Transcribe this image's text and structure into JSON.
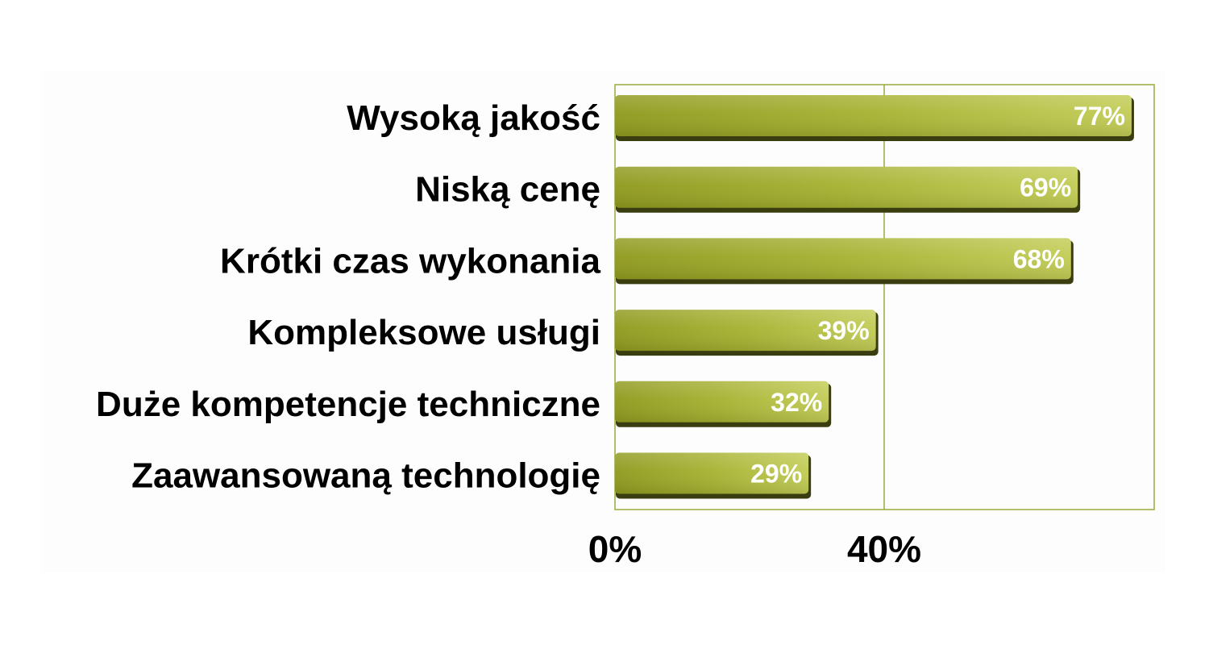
{
  "chart_data": {
    "type": "bar",
    "orientation": "horizontal",
    "categories": [
      "Wysoką jakość",
      "Niską cenę",
      "Krótki czas wykonania",
      "Kompleksowe usługi",
      "Duże kompetencje techniczne",
      "Zaawansowaną technologię"
    ],
    "values": [
      77,
      69,
      68,
      39,
      32,
      29
    ],
    "value_labels": [
      "77%",
      "69%",
      "68%",
      "39%",
      "32%",
      "29%"
    ],
    "x_ticks": [
      0,
      40
    ],
    "x_tick_labels": [
      "0%",
      "40%"
    ],
    "xlim": [
      0,
      80
    ],
    "grid": true,
    "legend": false,
    "title": "",
    "xlabel": "",
    "ylabel": "",
    "colors": {
      "bar_dark": "#8f9a1e",
      "bar_mid": "#a6b232",
      "bar_light": "#c2cc55",
      "bar_shadow": "#3a3d10",
      "frame": "#9aaa3a",
      "value_text": "#ffffff"
    }
  }
}
